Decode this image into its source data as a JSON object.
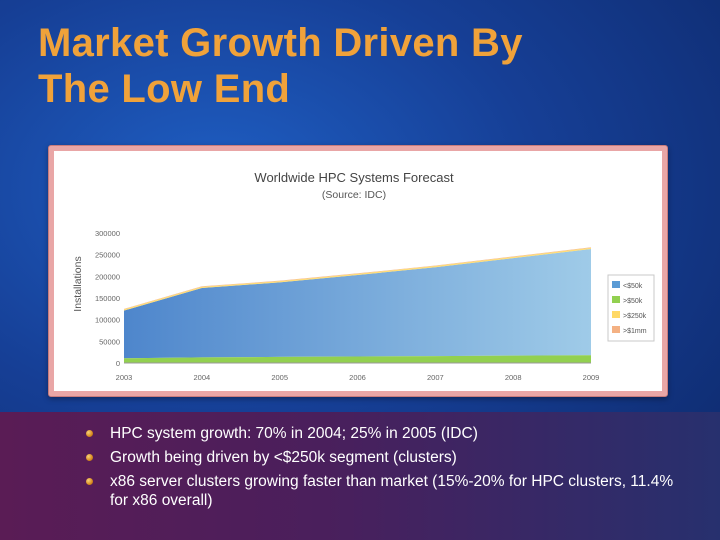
{
  "slide": {
    "title_lines": [
      "Market Growth Driven By",
      "The Low End"
    ]
  },
  "colors": {
    "title": "#f0a23a",
    "area_lt50k": "#5b9bd5",
    "area_gt50k": "#92d050",
    "area_gt250k": "#ffd966",
    "area_gt1mm": "#f4b183"
  },
  "chart_data": {
    "type": "area",
    "title": "Worldwide HPC Systems Forecast",
    "subtitle": "(Source: IDC)",
    "ylabel": "Installations",
    "xlabel": "",
    "x": [
      "2003",
      "2004",
      "2005",
      "2006",
      "2007",
      "2008",
      "2009"
    ],
    "ylim": [
      0,
      300000
    ],
    "yticks": [
      0,
      50000,
      100000,
      150000,
      200000,
      250000,
      300000
    ],
    "ytick_labels": [
      "0",
      "50000",
      "100000",
      "150000",
      "200000",
      "250000",
      "300000"
    ],
    "stacked": true,
    "legend_position": "right",
    "series": [
      {
        "name": "<$50k",
        "color": "#5b9bd5",
        "values": [
          110000,
          160000,
          172000,
          188000,
          205000,
          225000,
          245000
        ]
      },
      {
        "name": ">$50k",
        "color": "#92d050",
        "values": [
          11000,
          13000,
          14000,
          15000,
          16000,
          17000,
          18000
        ]
      },
      {
        "name": ">$250k",
        "color": "#ffd966",
        "values": [
          3000,
          3000,
          3000,
          3000,
          3000,
          3000,
          3000
        ]
      },
      {
        "name": ">$1mm",
        "color": "#f4b183",
        "values": [
          1000,
          1000,
          1000,
          1000,
          1000,
          1000,
          1000
        ]
      }
    ]
  },
  "bullets": [
    "HPC system growth: 70% in 2004; 25% in 2005 (IDC)",
    "Growth being driven by <$250k segment (clusters)",
    "x86 server clusters growing faster than market (15%-20% for HPC clusters, 11.4% for x86 overall)"
  ]
}
